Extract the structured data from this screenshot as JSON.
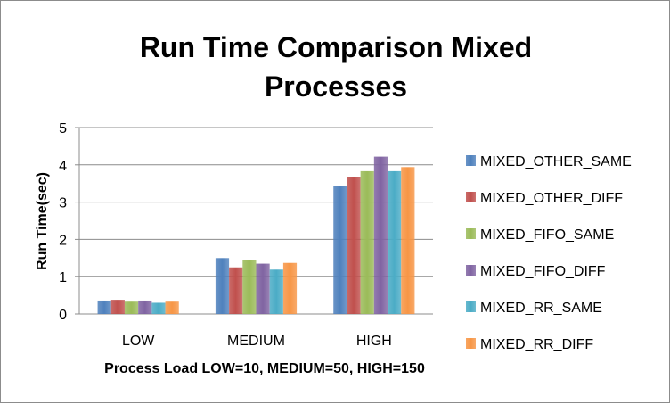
{
  "chart_data": {
    "type": "bar",
    "title_lines": [
      "Run Time Comparison Mixed",
      "Processes"
    ],
    "xlabel": "Process Load LOW=10, MEDIUM=50, HIGH=150",
    "ylabel": "Run Time(sec)",
    "ylim": [
      0,
      5
    ],
    "yticks": [
      "0",
      "1",
      "2",
      "3",
      "4",
      "5"
    ],
    "grid": true,
    "legend_position": "right",
    "categories": [
      "LOW",
      "MEDIUM",
      "HIGH"
    ],
    "series": [
      {
        "name": "MIXED_OTHER_SAME",
        "color": "#4f81bd",
        "values": [
          0.36,
          1.5,
          3.43
        ]
      },
      {
        "name": "MIXED_OTHER_DIFF",
        "color": "#c0504d",
        "values": [
          0.38,
          1.25,
          3.67
        ]
      },
      {
        "name": "MIXED_FIFO_SAME",
        "color": "#9bbb59",
        "values": [
          0.33,
          1.45,
          3.83
        ]
      },
      {
        "name": "MIXED_FIFO_DIFF",
        "color": "#8064a2",
        "values": [
          0.36,
          1.35,
          4.22
        ]
      },
      {
        "name": "MIXED_RR_SAME",
        "color": "#4bacc6",
        "values": [
          0.3,
          1.19,
          3.83
        ]
      },
      {
        "name": "MIXED_RR_DIFF",
        "color": "#f79646",
        "values": [
          0.33,
          1.37,
          3.94
        ]
      }
    ]
  }
}
